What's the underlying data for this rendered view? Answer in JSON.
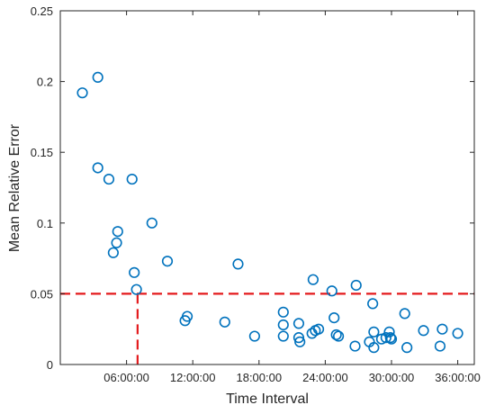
{
  "chart_data": {
    "type": "scatter",
    "title": "",
    "xlabel": "Time Interval",
    "ylabel": "Mean Relative Error",
    "x_unit": "hours",
    "xlim": [
      0,
      37.5
    ],
    "ylim": [
      0,
      0.25
    ],
    "x_ticks": [
      6,
      12,
      18,
      24,
      30,
      36
    ],
    "x_tick_labels": [
      "06:00:00",
      "12:00:00",
      "18:00:00",
      "24:00:00",
      "30:00:00",
      "36:00:00"
    ],
    "y_ticks": [
      0,
      0.05,
      0.1,
      0.15,
      0.2,
      0.25
    ],
    "y_tick_labels": [
      "0",
      "0.05",
      "0.1",
      "0.15",
      "0.2",
      "0.25"
    ],
    "grid": false,
    "marker_color": "#0072BD",
    "threshold": {
      "y": 0.05,
      "x": 7.0,
      "color": "#E41A1C",
      "style": "dashed"
    },
    "points": [
      {
        "x": 2.0,
        "y": 0.192
      },
      {
        "x": 3.4,
        "y": 0.203
      },
      {
        "x": 3.4,
        "y": 0.139
      },
      {
        "x": 4.4,
        "y": 0.131
      },
      {
        "x": 6.5,
        "y": 0.131
      },
      {
        "x": 8.3,
        "y": 0.1
      },
      {
        "x": 5.2,
        "y": 0.094
      },
      {
        "x": 5.1,
        "y": 0.086
      },
      {
        "x": 4.8,
        "y": 0.079
      },
      {
        "x": 9.7,
        "y": 0.073
      },
      {
        "x": 6.7,
        "y": 0.065
      },
      {
        "x": 16.1,
        "y": 0.071
      },
      {
        "x": 6.9,
        "y": 0.053
      },
      {
        "x": 22.9,
        "y": 0.06
      },
      {
        "x": 24.6,
        "y": 0.052
      },
      {
        "x": 26.8,
        "y": 0.056
      },
      {
        "x": 11.5,
        "y": 0.034
      },
      {
        "x": 11.3,
        "y": 0.031
      },
      {
        "x": 14.9,
        "y": 0.03
      },
      {
        "x": 17.6,
        "y": 0.02
      },
      {
        "x": 20.2,
        "y": 0.037
      },
      {
        "x": 20.2,
        "y": 0.028
      },
      {
        "x": 20.2,
        "y": 0.02
      },
      {
        "x": 21.6,
        "y": 0.029
      },
      {
        "x": 21.6,
        "y": 0.019
      },
      {
        "x": 21.7,
        "y": 0.016
      },
      {
        "x": 22.8,
        "y": 0.022
      },
      {
        "x": 23.1,
        "y": 0.024
      },
      {
        "x": 23.4,
        "y": 0.025
      },
      {
        "x": 24.8,
        "y": 0.033
      },
      {
        "x": 25.0,
        "y": 0.021
      },
      {
        "x": 25.2,
        "y": 0.02
      },
      {
        "x": 26.7,
        "y": 0.013
      },
      {
        "x": 28.0,
        "y": 0.016
      },
      {
        "x": 28.3,
        "y": 0.043
      },
      {
        "x": 28.4,
        "y": 0.023
      },
      {
        "x": 28.4,
        "y": 0.012
      },
      {
        "x": 29.1,
        "y": 0.018
      },
      {
        "x": 29.5,
        "y": 0.019
      },
      {
        "x": 29.8,
        "y": 0.023
      },
      {
        "x": 29.9,
        "y": 0.019
      },
      {
        "x": 30.0,
        "y": 0.018
      },
      {
        "x": 31.2,
        "y": 0.036
      },
      {
        "x": 31.4,
        "y": 0.012
      },
      {
        "x": 32.9,
        "y": 0.024
      },
      {
        "x": 34.6,
        "y": 0.025
      },
      {
        "x": 34.4,
        "y": 0.013
      },
      {
        "x": 36.0,
        "y": 0.022
      }
    ]
  }
}
